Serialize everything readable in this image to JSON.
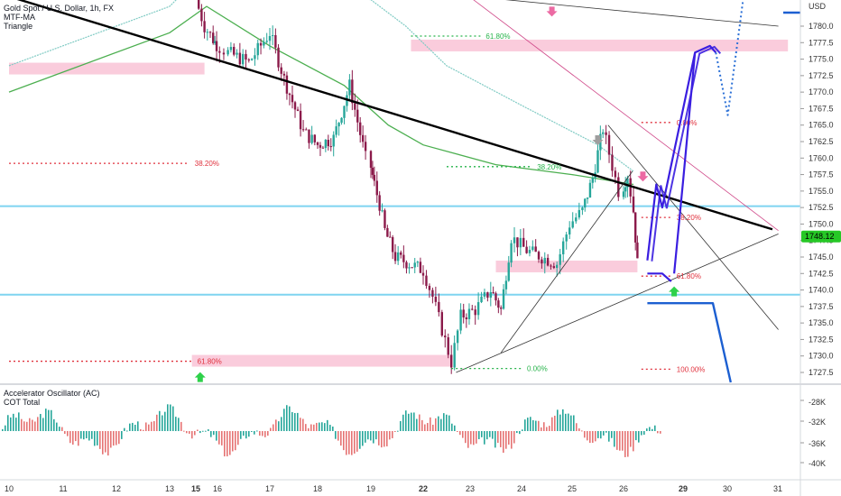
{
  "header": {
    "title": "Gold Spot / U.S. Dollar, 1h, FX",
    "indicator_1": "MTF-MA",
    "indicator_2": "Triangle"
  },
  "oscillator_pane": {
    "title": "Accelerator Oscillator (AC)",
    "subtitle": "COT Total",
    "ticks": [
      "-28K",
      "-32K",
      "-36K",
      "-40K"
    ]
  },
  "price_axis": {
    "currency": "USD",
    "last_price": "1748.12",
    "last_price_color": "#26c826"
  },
  "colors": {
    "up_candle": "#26a69a",
    "down_candle": "#8b1a4a",
    "trendline": "#000000",
    "projection": "#3a1ee0",
    "fib_red": "#e0313d",
    "fib_green": "#26b34a",
    "zone_pink": "#f8bbd0",
    "support_blue": "#7fd4f0"
  },
  "fib_labels": [
    {
      "text": "61.80%",
      "color": "green"
    },
    {
      "text": "38.20%",
      "color": "red"
    },
    {
      "text": "38.20%",
      "color": "green"
    },
    {
      "text": "61.80%",
      "color": "red"
    },
    {
      "text": "0.00%",
      "color": "green"
    },
    {
      "text": "0.00%",
      "color": "red"
    },
    {
      "text": "38.20%",
      "color": "red"
    },
    {
      "text": "61.80%",
      "color": "red"
    },
    {
      "text": "100.00%",
      "color": "red"
    }
  ],
  "chart_data": {
    "type": "candlestick",
    "symbol": "Gold Spot / U.S. Dollar",
    "timeframe": "1h",
    "x_ticks": [
      "10",
      "11",
      "12",
      "13",
      "15",
      "16",
      "17",
      "18",
      "19",
      "22",
      "23",
      "24",
      "25",
      "26",
      "29",
      "30",
      "31"
    ],
    "x_ticks_bold": [
      "15",
      "22",
      "29"
    ],
    "y_ticks": [
      1727.5,
      1730.0,
      1732.5,
      1735.0,
      1737.5,
      1740.0,
      1742.5,
      1745.0,
      1747.5,
      1750.0,
      1752.5,
      1755.0,
      1757.5,
      1760.0,
      1762.5,
      1765.0,
      1767.5,
      1770.0,
      1772.5,
      1775.0,
      1777.5,
      1780.0
    ],
    "ylim": [
      1725.2,
      1785.3
    ],
    "last_price": 1748.12,
    "price_path": [
      {
        "day": 15.0,
        "price": 1784.0
      },
      {
        "day": 15.4,
        "price": 1780.0
      },
      {
        "day": 15.8,
        "price": 1778.0
      },
      {
        "day": 16.2,
        "price": 1776.0
      },
      {
        "day": 16.6,
        "price": 1774.5
      },
      {
        "day": 17.0,
        "price": 1779.0
      },
      {
        "day": 17.3,
        "price": 1772.0
      },
      {
        "day": 17.7,
        "price": 1764.0
      },
      {
        "day": 18.0,
        "price": 1762.0
      },
      {
        "day": 18.3,
        "price": 1763.0
      },
      {
        "day": 18.6,
        "price": 1771.0
      },
      {
        "day": 18.9,
        "price": 1760.0
      },
      {
        "day": 19.2,
        "price": 1756.0
      },
      {
        "day": 19.5,
        "price": 1753.0
      },
      {
        "day": 19.8,
        "price": 1749.0
      },
      {
        "day": 20.1,
        "price": 1747.0
      },
      {
        "day": 20.4,
        "price": 1745.0
      },
      {
        "day": 22.0,
        "price": 1743.0
      },
      {
        "day": 22.2,
        "price": 1739.0
      },
      {
        "day": 22.4,
        "price": 1734.0
      },
      {
        "day": 22.6,
        "price": 1729.0
      },
      {
        "day": 22.8,
        "price": 1736.0
      },
      {
        "day": 23.1,
        "price": 1737.0
      },
      {
        "day": 23.4,
        "price": 1740.0
      },
      {
        "day": 23.6,
        "price": 1737.0
      },
      {
        "day": 23.8,
        "price": 1748.0
      },
      {
        "day": 24.1,
        "price": 1746.0
      },
      {
        "day": 24.4,
        "price": 1745.0
      },
      {
        "day": 24.7,
        "price": 1744.0
      },
      {
        "day": 24.95,
        "price": 1750.0
      },
      {
        "day": 25.2,
        "price": 1752.0
      },
      {
        "day": 25.4,
        "price": 1757.0
      },
      {
        "day": 25.6,
        "price": 1764.5
      },
      {
        "day": 25.9,
        "price": 1755.0
      },
      {
        "day": 26.2,
        "price": 1757.5
      },
      {
        "day": 26.5,
        "price": 1752.0
      },
      {
        "day": 26.7,
        "price": 1744.0
      }
    ],
    "trendlines": [
      {
        "name": "descending",
        "from": {
          "day": 10.0,
          "price": 1784.5
        },
        "to": {
          "day": 31.0,
          "price": 1749.2
        }
      },
      {
        "name": "ascending",
        "from": {
          "day": 22.7,
          "price": 1727.5
        },
        "to": {
          "day": 31.2,
          "price": 1748.5
        }
      },
      {
        "name": "upper",
        "from": {
          "day": 19.0,
          "price": 1786.0
        },
        "to": {
          "day": 31.2,
          "price": 1780.0
        }
      },
      {
        "name": "pink",
        "from": {
          "day": 22.7,
          "price": 1786.0
        },
        "to": {
          "day": 31.2,
          "price": 1749.0
        }
      },
      {
        "name": "steep",
        "from": {
          "day": 25.7,
          "price": 1765.0
        },
        "to": {
          "day": 31.2,
          "price": 1734.0
        }
      },
      {
        "name": "wedge-lower",
        "from": {
          "day": 23.6,
          "price": 1730.5
        },
        "to": {
          "day": 26.3,
          "price": 1758.0
        }
      }
    ],
    "moving_averages": [
      {
        "name": "slow",
        "color": "#4caf50",
        "points": [
          [
            10.0,
            1770.0
          ],
          [
            13.0,
            1779.0
          ],
          [
            15.5,
            1783.0
          ],
          [
            17.0,
            1777.0
          ],
          [
            18.5,
            1771.0
          ],
          [
            20.0,
            1765.0
          ],
          [
            22.0,
            1762.0
          ],
          [
            23.5,
            1759.0
          ],
          [
            25.0,
            1757.5
          ],
          [
            26.5,
            1756.0
          ]
        ]
      },
      {
        "name": "fast",
        "color": "#80cbc4",
        "points": [
          [
            10.0,
            1774.0
          ],
          [
            13.0,
            1783.0
          ],
          [
            15.0,
            1787.0
          ],
          [
            17.0,
            1786.0
          ],
          [
            19.0,
            1784.0
          ],
          [
            21.0,
            1780.0
          ],
          [
            22.5,
            1774.0
          ],
          [
            24.0,
            1768.0
          ],
          [
            25.5,
            1762.0
          ],
          [
            26.5,
            1758.0
          ]
        ]
      }
    ],
    "horizontal_lines": [
      {
        "price": 1752.7,
        "color": "#7fd4f0"
      },
      {
        "price": 1739.3,
        "color": "#7fd4f0"
      }
    ],
    "zones": [
      {
        "from_day": 10.0,
        "to_day": 15.4,
        "price": 1773.5
      },
      {
        "from_day": 21.3,
        "to_day": 31.2,
        "price": 1777.0
      },
      {
        "from_day": 23.5,
        "to_day": 26.7,
        "price": 1743.5
      },
      {
        "from_day": 14.7,
        "to_day": 22.6,
        "price": 1729.2
      }
    ],
    "fib_levels": [
      {
        "price": 1778.5,
        "from_day": 21.3,
        "to_day": 23.2,
        "label_index": 0
      },
      {
        "price": 1759.2,
        "from_day": 10.0,
        "to_day": 14.5,
        "label_index": 1
      },
      {
        "price": 1758.7,
        "from_day": 22.5,
        "to_day": 24.2,
        "label_index": 2
      },
      {
        "price": 1729.2,
        "from_day": 10.0,
        "to_day": 14.7,
        "label_index": 3
      },
      {
        "price": 1728.1,
        "from_day": 22.6,
        "to_day": 24.0,
        "label_index": 4
      },
      {
        "price": 1765.4,
        "from_day": 26.6,
        "to_day": 27.6,
        "label_index": 5
      },
      {
        "price": 1751.0,
        "from_day": 26.6,
        "to_day": 27.6,
        "label_index": 6
      },
      {
        "price": 1742.1,
        "from_day": 26.6,
        "to_day": 27.6,
        "label_index": 7
      },
      {
        "price": 1728.0,
        "from_day": 26.6,
        "to_day": 27.6,
        "label_index": 8
      }
    ],
    "projections": [
      {
        "style": "solid",
        "points": [
          [
            26.8,
            1744.5
          ],
          [
            27.1,
            1756.0
          ],
          [
            27.3,
            1752.5
          ],
          [
            28.4,
            1776.0
          ],
          [
            28.9,
            1777.0
          ],
          [
            29.1,
            1776.0
          ]
        ]
      },
      {
        "style": "solid",
        "points": [
          [
            27.7,
            1742.5
          ],
          [
            28.0,
            1756.5
          ],
          [
            28.4,
            1776.0
          ]
        ]
      },
      {
        "style": "flat",
        "points": [
          [
            26.8,
            1742.5
          ],
          [
            27.3,
            1742.5
          ],
          [
            27.6,
            1741.3
          ]
        ]
      },
      {
        "style": "dotted",
        "points": [
          [
            29.1,
            1776.0
          ],
          [
            29.5,
            1766.5
          ],
          [
            29.9,
            1780.0
          ],
          [
            30.1,
            1787.0
          ]
        ]
      },
      {
        "style": "dark",
        "points": [
          [
            26.8,
            1738.0
          ],
          [
            27.6,
            1738.0
          ],
          [
            29.0,
            1738.0
          ],
          [
            29.6,
            1726.0
          ]
        ]
      }
    ],
    "arrows": [
      {
        "direction": "down",
        "color": "#ec6aa3",
        "day": 24.6,
        "price": 1782.0
      },
      {
        "direction": "down",
        "color": "#9e9e9e",
        "day": 25.5,
        "price": 1762.5
      },
      {
        "direction": "down",
        "color": "#ec6aa3",
        "day": 26.65,
        "price": 1757.0
      },
      {
        "direction": "up",
        "color": "#2ed14a",
        "day": 27.7,
        "price": 1740.0
      },
      {
        "direction": "up",
        "color": "#2ed14a",
        "day": 15.2,
        "price": 1727.0
      }
    ],
    "oscillator": {
      "series": [
        {
          "name": "Accelerator Oscillator (AC)",
          "color_up": "#26a69a",
          "color_down": "#e57373"
        }
      ]
    }
  }
}
